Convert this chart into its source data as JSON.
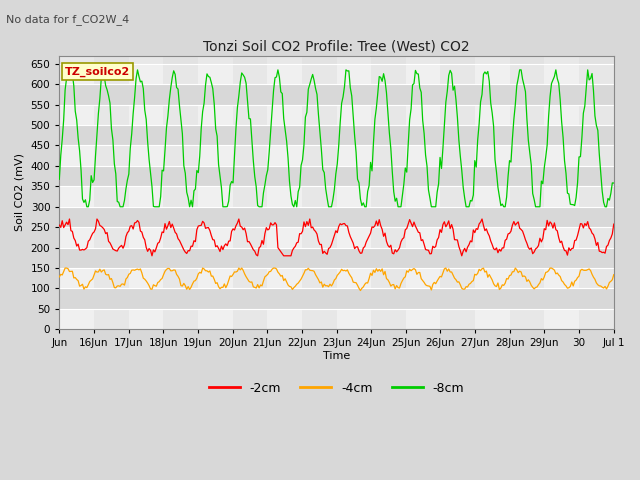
{
  "title": "Tonzi Soil CO2 Profile: Tree (West) CO2",
  "subtitle": "No data for f_CO2W_4",
  "ylabel": "Soil CO2 (mV)",
  "xlabel": "Time",
  "legend_label": "TZ_soilco2",
  "series_labels": [
    "-2cm",
    "-4cm",
    "-8cm"
  ],
  "series_colors": [
    "#ff0000",
    "#ffa500",
    "#00cc00"
  ],
  "ylim": [
    0,
    670
  ],
  "yticks": [
    0,
    50,
    100,
    150,
    200,
    250,
    300,
    350,
    400,
    450,
    500,
    550,
    600,
    650
  ],
  "bg_color": "#d8d8d8",
  "plot_bg_color": "#e8e8e8",
  "stripe_color_light": "#f0f0f0",
  "stripe_color_dark": "#d8d8d8",
  "grid_color": "#ffffff",
  "title_fontsize": 10,
  "subtitle_fontsize": 8,
  "label_fontsize": 8,
  "tick_fontsize": 7.5,
  "legend_fontsize": 9
}
